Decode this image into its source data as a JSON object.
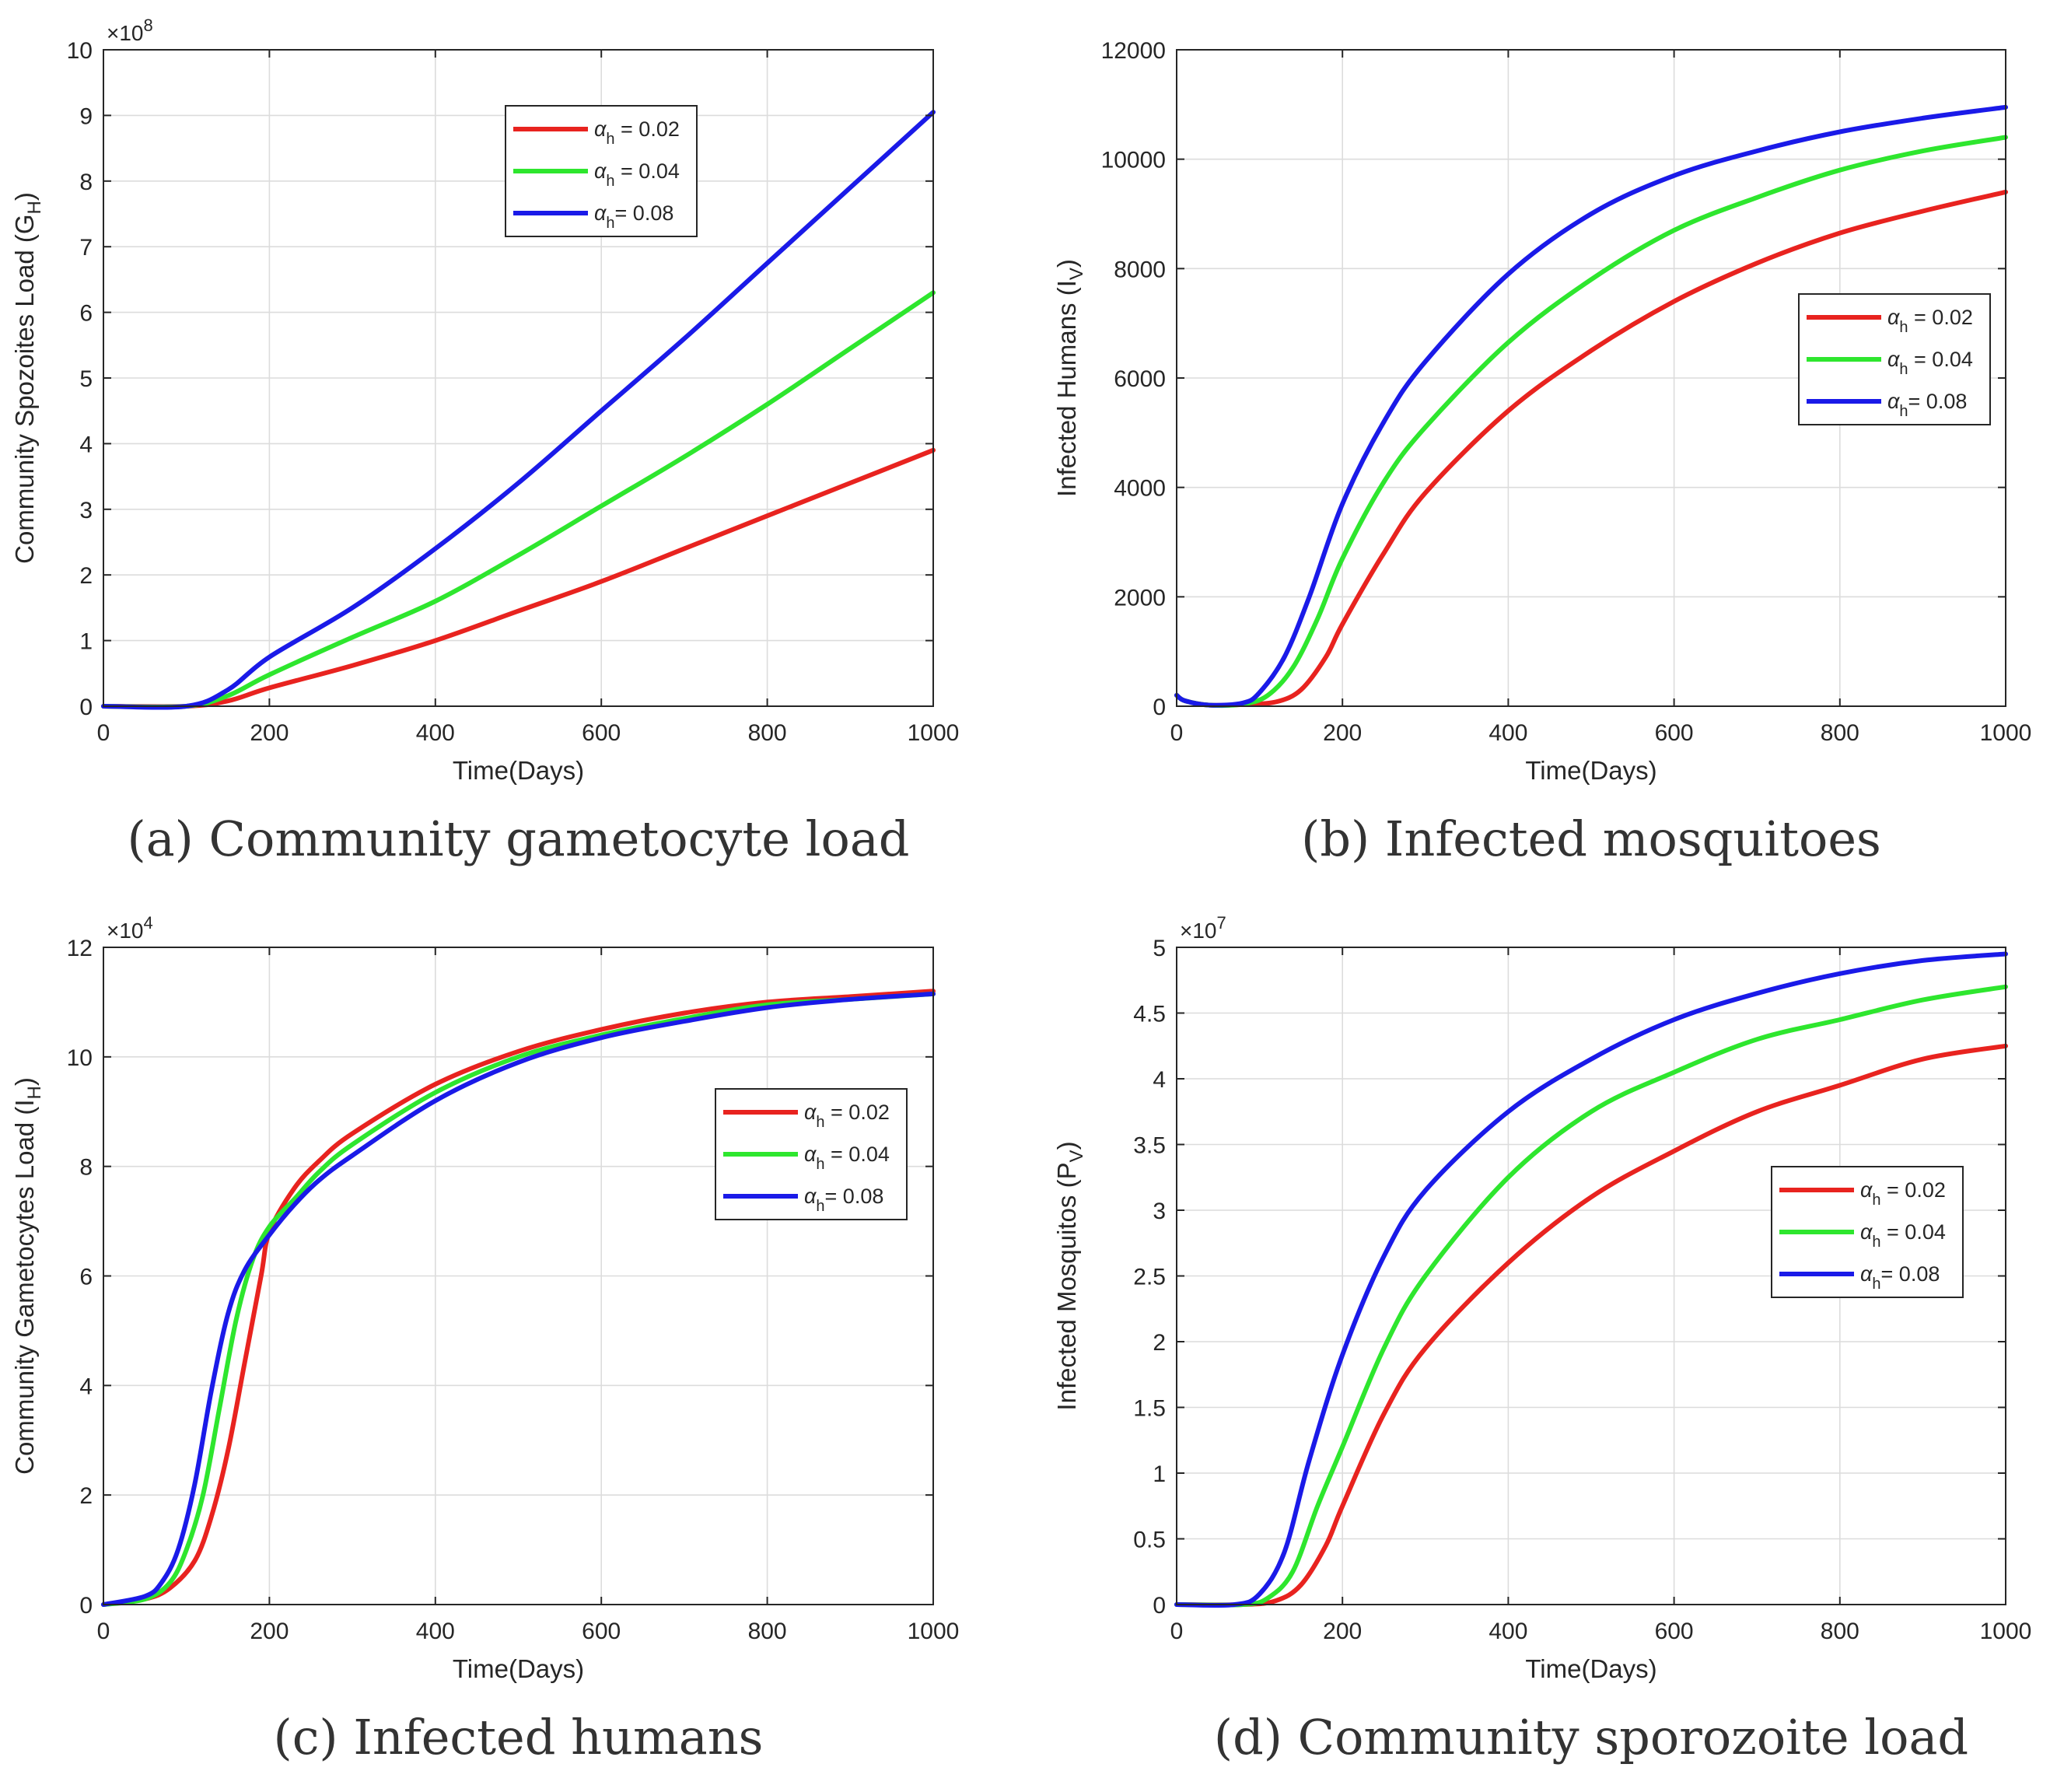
{
  "figure": {
    "panels": [
      {
        "caption": "(a) Community gametocyte load",
        "chart_data": {
          "type": "line",
          "title": "",
          "xlabel": "Time(Days)",
          "ylabel_main": "Community Spozoites Load (G",
          "ylabel_sub": "H",
          "ylabel_end": ")",
          "exponent_base": "×10",
          "exponent_power": "8",
          "xlim": [
            0,
            1000
          ],
          "ylim": [
            0,
            10
          ],
          "xticks": [
            0,
            200,
            400,
            600,
            800,
            1000
          ],
          "yticks": [
            0,
            1,
            2,
            3,
            4,
            5,
            6,
            7,
            8,
            9,
            10
          ],
          "xtick_labels": [
            "0",
            "200",
            "400",
            "600",
            "800",
            "1000"
          ],
          "ytick_labels": [
            "0",
            "1",
            "2",
            "3",
            "4",
            "5",
            "6",
            "7",
            "8",
            "9",
            "10"
          ],
          "grid": true,
          "legend_position": "top-right",
          "series": [
            {
              "name": "α_h = 0.02",
              "legend_symbol": "α",
              "legend_sub": "h",
              "legend_text": " = 0.02",
              "color": "#e8231f",
              "x": [
                0,
                100,
                150,
                200,
                300,
                400,
                500,
                600,
                700,
                800,
                900,
                1000
              ],
              "y": [
                0,
                0,
                0.08,
                0.28,
                0.62,
                1.0,
                1.45,
                1.9,
                2.4,
                2.9,
                3.4,
                3.9
              ]
            },
            {
              "name": "α_h = 0.04",
              "legend_symbol": "α",
              "legend_sub": "h",
              "legend_text": " = 0.04",
              "color": "#2ee62e",
              "x": [
                0,
                100,
                150,
                200,
                300,
                400,
                500,
                600,
                700,
                800,
                900,
                1000
              ],
              "y": [
                0,
                0,
                0.16,
                0.48,
                1.05,
                1.6,
                2.3,
                3.05,
                3.8,
                4.6,
                5.45,
                6.3
              ]
            },
            {
              "name": "α_h = 0.08",
              "legend_symbol": "α",
              "legend_sub": "h",
              "legend_text": "= 0.08",
              "color": "#1a1ae8",
              "x": [
                0,
                100,
                150,
                200,
                300,
                400,
                500,
                600,
                700,
                800,
                900,
                1000
              ],
              "y": [
                0,
                0,
                0.25,
                0.75,
                1.5,
                2.4,
                3.4,
                4.5,
                5.6,
                6.75,
                7.9,
                9.05
              ]
            }
          ]
        }
      },
      {
        "caption": "(b) Infected mosquitoes",
        "chart_data": {
          "type": "line",
          "title": "",
          "xlabel": "Time(Days)",
          "ylabel_main": "Infected Humans (I",
          "ylabel_sub": "V",
          "ylabel_end": ")",
          "exponent_base": "",
          "exponent_power": "",
          "xlim": [
            0,
            1000
          ],
          "ylim": [
            0,
            12000
          ],
          "xticks": [
            0,
            200,
            400,
            600,
            800,
            1000
          ],
          "yticks": [
            0,
            2000,
            4000,
            6000,
            8000,
            10000,
            12000
          ],
          "xtick_labels": [
            "0",
            "200",
            "400",
            "600",
            "800",
            "1000"
          ],
          "ytick_labels": [
            "0",
            "2000",
            "4000",
            "6000",
            "8000",
            "10000",
            "12000"
          ],
          "grid": true,
          "legend_position": "right",
          "series": [
            {
              "name": "α_h = 0.02",
              "legend_symbol": "α",
              "legend_sub": "h",
              "legend_text": " = 0.02",
              "color": "#e8231f",
              "x": [
                0,
                10,
                40,
                80,
                120,
                150,
                180,
                200,
                250,
                300,
                400,
                500,
                600,
                700,
                800,
                900,
                1000
              ],
              "y": [
                200,
                100,
                20,
                30,
                80,
                300,
                900,
                1500,
                2800,
                3900,
                5400,
                6500,
                7400,
                8100,
                8650,
                9050,
                9400
              ]
            },
            {
              "name": "α_h = 0.04",
              "legend_symbol": "α",
              "legend_sub": "h",
              "legend_text": " = 0.04",
              "color": "#2ee62e",
              "x": [
                0,
                10,
                40,
                80,
                110,
                140,
                170,
                200,
                250,
                300,
                400,
                500,
                600,
                700,
                800,
                900,
                1000
              ],
              "y": [
                200,
                100,
                20,
                40,
                200,
                700,
                1600,
                2700,
                4100,
                5100,
                6650,
                7800,
                8700,
                9300,
                9800,
                10150,
                10400
              ]
            },
            {
              "name": "α_h = 0.08",
              "legend_symbol": "α",
              "legend_sub": "h",
              "legend_text": "= 0.08",
              "color": "#1a1ae8",
              "x": [
                0,
                10,
                40,
                80,
                100,
                130,
                160,
                200,
                250,
                300,
                400,
                500,
                600,
                700,
                800,
                900,
                1000
              ],
              "y": [
                200,
                100,
                20,
                60,
                250,
                900,
                2000,
                3700,
                5200,
                6300,
                7900,
                9000,
                9700,
                10150,
                10500,
                10750,
                10950
              ]
            }
          ]
        }
      },
      {
        "caption": "(c) Infected humans",
        "chart_data": {
          "type": "line",
          "title": "",
          "xlabel": "Time(Days)",
          "ylabel_main": "Community Gametocytes Load (I",
          "ylabel_sub": "H",
          "ylabel_end": ")",
          "exponent_base": "×10",
          "exponent_power": "4",
          "xlim": [
            0,
            1000
          ],
          "ylim": [
            0,
            12
          ],
          "xticks": [
            0,
            200,
            400,
            600,
            800,
            1000
          ],
          "yticks": [
            0,
            2,
            4,
            6,
            8,
            10,
            12
          ],
          "xtick_labels": [
            "0",
            "200",
            "400",
            "600",
            "800",
            "1000"
          ],
          "ytick_labels": [
            "0",
            "2",
            "4",
            "6",
            "8",
            "10",
            "12"
          ],
          "grid": true,
          "legend_position": "right",
          "series": [
            {
              "name": "α_h = 0.02",
              "legend_symbol": "α",
              "legend_sub": "h",
              "legend_text": " = 0.02",
              "color": "#e8231f",
              "x": [
                0,
                50,
                80,
                110,
                130,
                150,
                170,
                190,
                200,
                230,
                260,
                300,
                400,
                500,
                600,
                700,
                800,
                900,
                1000
              ],
              "y": [
                0,
                0.1,
                0.3,
                0.8,
                1.6,
                2.8,
                4.4,
                6.0,
                6.8,
                7.6,
                8.1,
                8.6,
                9.5,
                10.1,
                10.5,
                10.8,
                11.0,
                11.1,
                11.2
              ]
            },
            {
              "name": "α_h = 0.04",
              "legend_symbol": "α",
              "legend_sub": "h",
              "legend_text": " = 0.04",
              "color": "#2ee62e",
              "x": [
                0,
                50,
                80,
                100,
                120,
                140,
                160,
                180,
                200,
                230,
                260,
                300,
                400,
                500,
                600,
                700,
                800,
                900,
                1000
              ],
              "y": [
                0,
                0.1,
                0.4,
                1.0,
                2.0,
                3.6,
                5.2,
                6.3,
                6.9,
                7.4,
                7.9,
                8.4,
                9.35,
                10.0,
                10.4,
                10.7,
                10.95,
                11.05,
                11.15
              ]
            },
            {
              "name": "α_h = 0.08",
              "legend_symbol": "α",
              "legend_sub": "h",
              "legend_text": "= 0.08",
              "color": "#1a1ae8",
              "x": [
                0,
                50,
                70,
                90,
                110,
                130,
                150,
                170,
                200,
                230,
                260,
                300,
                400,
                500,
                600,
                700,
                800,
                900,
                1000
              ],
              "y": [
                0,
                0.15,
                0.4,
                1.0,
                2.2,
                3.9,
                5.3,
                6.1,
                6.75,
                7.3,
                7.75,
                8.2,
                9.2,
                9.9,
                10.35,
                10.65,
                10.9,
                11.05,
                11.15
              ]
            }
          ]
        }
      },
      {
        "caption": "(d) Community sporozoite load",
        "chart_data": {
          "type": "line",
          "title": "",
          "xlabel": "Time(Days)",
          "ylabel_main": "Infected Mosquitos (P",
          "ylabel_sub": "V",
          "ylabel_end": ")",
          "exponent_base": "×10",
          "exponent_power": "7",
          "xlim": [
            0,
            1000
          ],
          "ylim": [
            0,
            5
          ],
          "xticks": [
            0,
            200,
            400,
            600,
            800,
            1000
          ],
          "yticks": [
            0,
            0.5,
            1,
            1.5,
            2,
            2.5,
            3,
            3.5,
            4,
            4.5,
            5
          ],
          "xtick_labels": [
            "0",
            "200",
            "400",
            "600",
            "800",
            "1000"
          ],
          "ytick_labels": [
            "0",
            "0.5",
            "1",
            "1.5",
            "2",
            "2.5",
            "3",
            "3.5",
            "4",
            "4.5",
            "5"
          ],
          "grid": true,
          "legend_position": "right",
          "series": [
            {
              "name": "α_h = 0.02",
              "legend_symbol": "α",
              "legend_sub": "h",
              "legend_text": " = 0.02",
              "color": "#e8231f",
              "x": [
                0,
                80,
                120,
                150,
                180,
                200,
                250,
                300,
                400,
                500,
                600,
                700,
                800,
                900,
                1000
              ],
              "y": [
                0,
                0,
                0.03,
                0.15,
                0.45,
                0.75,
                1.45,
                1.95,
                2.6,
                3.1,
                3.45,
                3.75,
                3.95,
                4.15,
                4.25
              ]
            },
            {
              "name": "α_h = 0.04",
              "legend_symbol": "α",
              "legend_sub": "h",
              "legend_text": " = 0.04",
              "color": "#2ee62e",
              "x": [
                0,
                80,
                110,
                140,
                170,
                200,
                250,
                300,
                400,
                500,
                600,
                700,
                800,
                900,
                1000
              ],
              "y": [
                0,
                0,
                0.05,
                0.25,
                0.75,
                1.2,
                1.95,
                2.5,
                3.25,
                3.75,
                4.05,
                4.3,
                4.45,
                4.6,
                4.7
              ]
            },
            {
              "name": "α_h = 0.08",
              "legend_symbol": "α",
              "legend_sub": "h",
              "legend_text": "= 0.08",
              "color": "#1a1ae8",
              "x": [
                0,
                70,
                100,
                130,
                160,
                200,
                250,
                300,
                400,
                500,
                600,
                700,
                800,
                900,
                1000
              ],
              "y": [
                0,
                0,
                0.08,
                0.4,
                1.1,
                1.9,
                2.65,
                3.15,
                3.75,
                4.15,
                4.45,
                4.65,
                4.8,
                4.9,
                4.95
              ]
            }
          ]
        }
      }
    ]
  }
}
